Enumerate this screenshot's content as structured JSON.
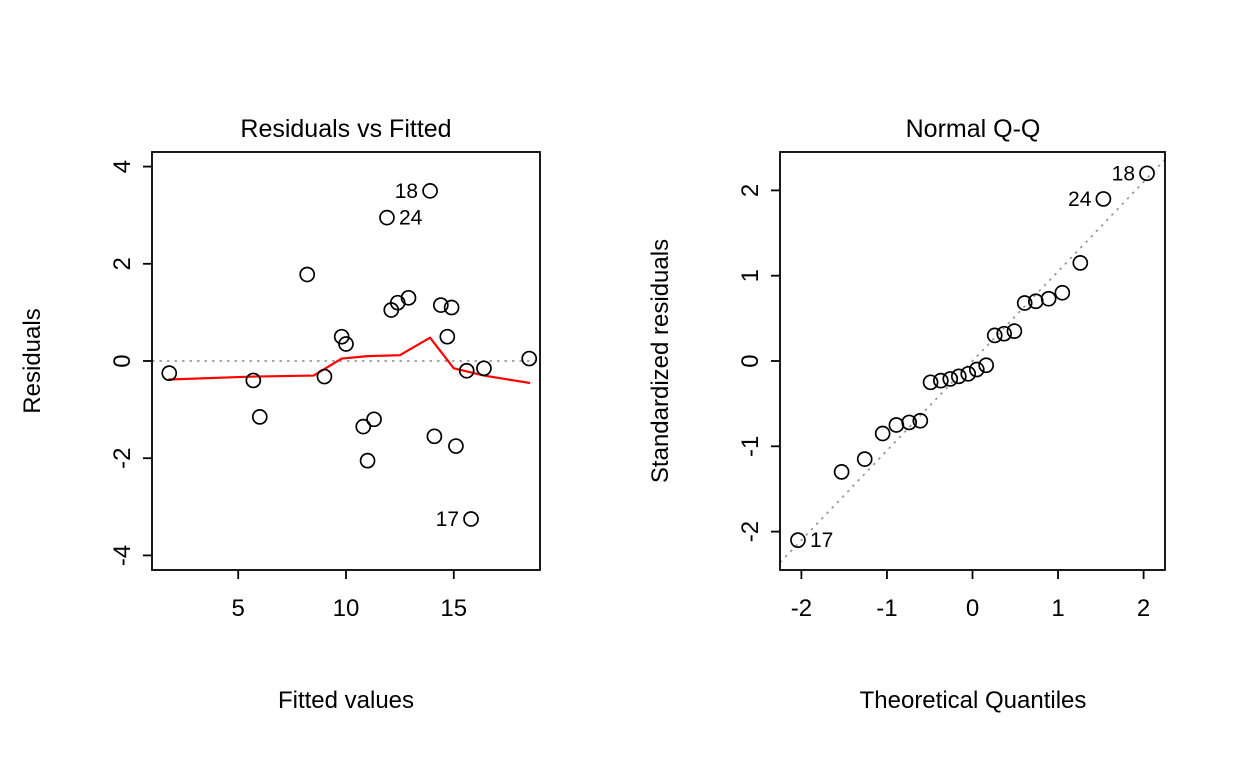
{
  "figure": {
    "background": "#ffffff",
    "colors": {
      "points": "#000000",
      "smoother": "#ff0000",
      "reference": "#9b9b9b",
      "axis": "#000000"
    }
  },
  "chart_data": [
    {
      "type": "scatter",
      "title": "Residuals vs Fitted",
      "xlabel": "Fitted values",
      "ylabel": "Residuals",
      "xlim": [
        1,
        19
      ],
      "ylim": [
        -4.3,
        4.3
      ],
      "xticks": [
        5,
        10,
        15
      ],
      "yticks": [
        -4,
        -2,
        0,
        2,
        4
      ],
      "grid": false,
      "points": [
        [
          1.8,
          -0.25
        ],
        [
          5.7,
          -0.4
        ],
        [
          6.0,
          -1.15
        ],
        [
          8.2,
          1.78
        ],
        [
          9.0,
          -0.32
        ],
        [
          9.8,
          0.5
        ],
        [
          10.0,
          0.35
        ],
        [
          10.8,
          -1.35
        ],
        [
          11.0,
          -2.05
        ],
        [
          11.3,
          -1.2
        ],
        [
          11.9,
          2.95
        ],
        [
          12.1,
          1.05
        ],
        [
          12.4,
          1.2
        ],
        [
          12.9,
          1.3
        ],
        [
          13.9,
          3.5
        ],
        [
          14.1,
          -1.55
        ],
        [
          14.4,
          1.15
        ],
        [
          14.7,
          0.5
        ],
        [
          14.9,
          1.1
        ],
        [
          15.1,
          -1.75
        ],
        [
          15.6,
          -0.2
        ],
        [
          15.8,
          -3.25
        ],
        [
          16.4,
          -0.15
        ],
        [
          18.5,
          0.05
        ]
      ],
      "point_labels": [
        {
          "text": "18",
          "x": 13.9,
          "y": 3.5,
          "side": "left"
        },
        {
          "text": "24",
          "x": 11.9,
          "y": 2.95,
          "side": "right"
        },
        {
          "text": "17",
          "x": 15.8,
          "y": -3.25,
          "side": "left"
        }
      ],
      "reference_line": {
        "kind": "horizontal",
        "y": 0,
        "style": "dotted"
      },
      "smoother": [
        [
          1.8,
          -0.38
        ],
        [
          5.7,
          -0.32
        ],
        [
          8.5,
          -0.3
        ],
        [
          9.8,
          0.05
        ],
        [
          11.0,
          0.1
        ],
        [
          12.5,
          0.12
        ],
        [
          13.9,
          0.48
        ],
        [
          15.0,
          -0.15
        ],
        [
          16.4,
          -0.3
        ],
        [
          18.5,
          -0.45
        ]
      ]
    },
    {
      "type": "scatter",
      "title": "Normal Q-Q",
      "xlabel": "Theoretical Quantiles",
      "ylabel": "Standardized residuals",
      "xlim": [
        -2.25,
        2.25
      ],
      "ylim": [
        -2.45,
        2.45
      ],
      "xticks": [
        -2,
        -1,
        0,
        1,
        2
      ],
      "yticks": [
        -2,
        -1,
        0,
        1,
        2
      ],
      "grid": false,
      "points": [
        [
          -2.04,
          -2.1
        ],
        [
          -1.53,
          -1.3
        ],
        [
          -1.26,
          -1.15
        ],
        [
          -1.05,
          -0.85
        ],
        [
          -0.89,
          -0.75
        ],
        [
          -0.74,
          -0.72
        ],
        [
          -0.61,
          -0.7
        ],
        [
          -0.49,
          -0.25
        ],
        [
          -0.37,
          -0.23
        ],
        [
          -0.26,
          -0.21
        ],
        [
          -0.16,
          -0.18
        ],
        [
          -0.05,
          -0.15
        ],
        [
          0.05,
          -0.1
        ],
        [
          0.16,
          -0.05
        ],
        [
          0.26,
          0.3
        ],
        [
          0.37,
          0.32
        ],
        [
          0.49,
          0.35
        ],
        [
          0.61,
          0.68
        ],
        [
          0.74,
          0.7
        ],
        [
          0.89,
          0.73
        ],
        [
          1.05,
          0.8
        ],
        [
          1.26,
          1.15
        ],
        [
          1.53,
          1.9
        ],
        [
          2.04,
          2.2
        ]
      ],
      "point_labels": [
        {
          "text": "18",
          "x": 2.04,
          "y": 2.2,
          "side": "left"
        },
        {
          "text": "24",
          "x": 1.53,
          "y": 1.9,
          "side": "left"
        },
        {
          "text": "17",
          "x": -2.04,
          "y": -2.1,
          "side": "right"
        }
      ],
      "reference_line": {
        "kind": "abline",
        "intercept": 0,
        "slope": 1.05,
        "style": "dotted"
      },
      "smoother": null
    }
  ]
}
